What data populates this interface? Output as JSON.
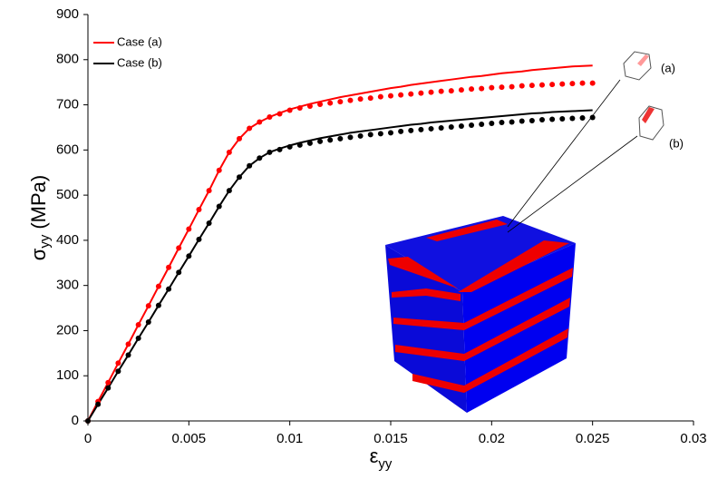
{
  "chart_data": {
    "type": "line",
    "ylabel": {
      "symbol": "σ",
      "subscript": "yy",
      "unit": "(MPa)"
    },
    "xlabel": {
      "symbol": "ε",
      "subscript": "yy"
    },
    "annotations": [
      "(a)",
      "(b)"
    ],
    "x": [
      0,
      0.0005,
      0.001,
      0.0015,
      0.002,
      0.0025,
      0.003,
      0.0035,
      0.004,
      0.0045,
      0.005,
      0.0055,
      0.006,
      0.0065,
      0.007,
      0.0075,
      0.008,
      0.0085,
      0.009,
      0.0095,
      0.01,
      0.0105,
      0.011,
      0.0115,
      0.012,
      0.0125,
      0.013,
      0.0135,
      0.014,
      0.0145,
      0.015,
      0.0155,
      0.016,
      0.0165,
      0.017,
      0.0175,
      0.018,
      0.0185,
      0.019,
      0.0195,
      0.02,
      0.0205,
      0.021,
      0.0215,
      0.022,
      0.0225,
      0.023,
      0.0235,
      0.024,
      0.0245,
      0.025
    ],
    "series": [
      {
        "name": "Case (a)",
        "color": "#ff0000",
        "style": "line",
        "values": [
          0,
          43,
          85,
          128,
          170,
          213,
          255,
          298,
          340,
          383,
          425,
          468,
          510,
          555,
          595,
          625,
          648,
          662,
          673,
          682,
          690,
          696,
          702,
          707,
          712,
          717,
          721,
          725,
          729,
          733,
          737,
          740,
          744,
          747,
          750,
          753,
          756,
          759,
          762,
          764,
          767,
          770,
          772,
          774,
          777,
          779,
          781,
          783,
          785,
          786,
          787
        ]
      },
      {
        "name": "Case (b)",
        "color": "#000000",
        "style": "line",
        "values": [
          0,
          37,
          73,
          110,
          146,
          183,
          219,
          256,
          292,
          329,
          365,
          402,
          438,
          475,
          510,
          540,
          565,
          582,
          595,
          603,
          610,
          616,
          621,
          626,
          630,
          634,
          638,
          641,
          644,
          647,
          650,
          653,
          656,
          658,
          661,
          663,
          665,
          667,
          669,
          671,
          673,
          675,
          677,
          679,
          681,
          682,
          684,
          685,
          686,
          687,
          688
        ]
      },
      {
        "color": "#ff0000",
        "style": "dots",
        "values": [
          0,
          43,
          85,
          128,
          170,
          213,
          255,
          298,
          340,
          383,
          425,
          468,
          510,
          555,
          595,
          625,
          648,
          662,
          673,
          680,
          688,
          693,
          697,
          701,
          704,
          707,
          710,
          713,
          715,
          718,
          720,
          722,
          724,
          726,
          728,
          730,
          731,
          733,
          735,
          736,
          738,
          739,
          740,
          742,
          743,
          744,
          745,
          746,
          747,
          748,
          748
        ]
      },
      {
        "color": "#000000",
        "style": "dots",
        "values": [
          0,
          37,
          73,
          110,
          146,
          183,
          219,
          256,
          292,
          329,
          365,
          402,
          438,
          475,
          510,
          540,
          565,
          582,
          595,
          601,
          607,
          611,
          615,
          619,
          622,
          625,
          628,
          631,
          634,
          636,
          638,
          641,
          643,
          645,
          647,
          649,
          651,
          653,
          655,
          657,
          659,
          661,
          662,
          664,
          665,
          667,
          668,
          669,
          670,
          671,
          672
        ]
      }
    ],
    "xlim": [
      0,
      0.03
    ],
    "xticks": [
      0,
      0.005,
      0.01,
      0.015,
      0.02,
      0.025,
      0.03
    ],
    "ylim": [
      0,
      900
    ],
    "yticks": [
      0,
      100,
      200,
      300,
      400,
      500,
      600,
      700,
      800,
      900
    ],
    "grid": false,
    "legend": "upper left"
  }
}
